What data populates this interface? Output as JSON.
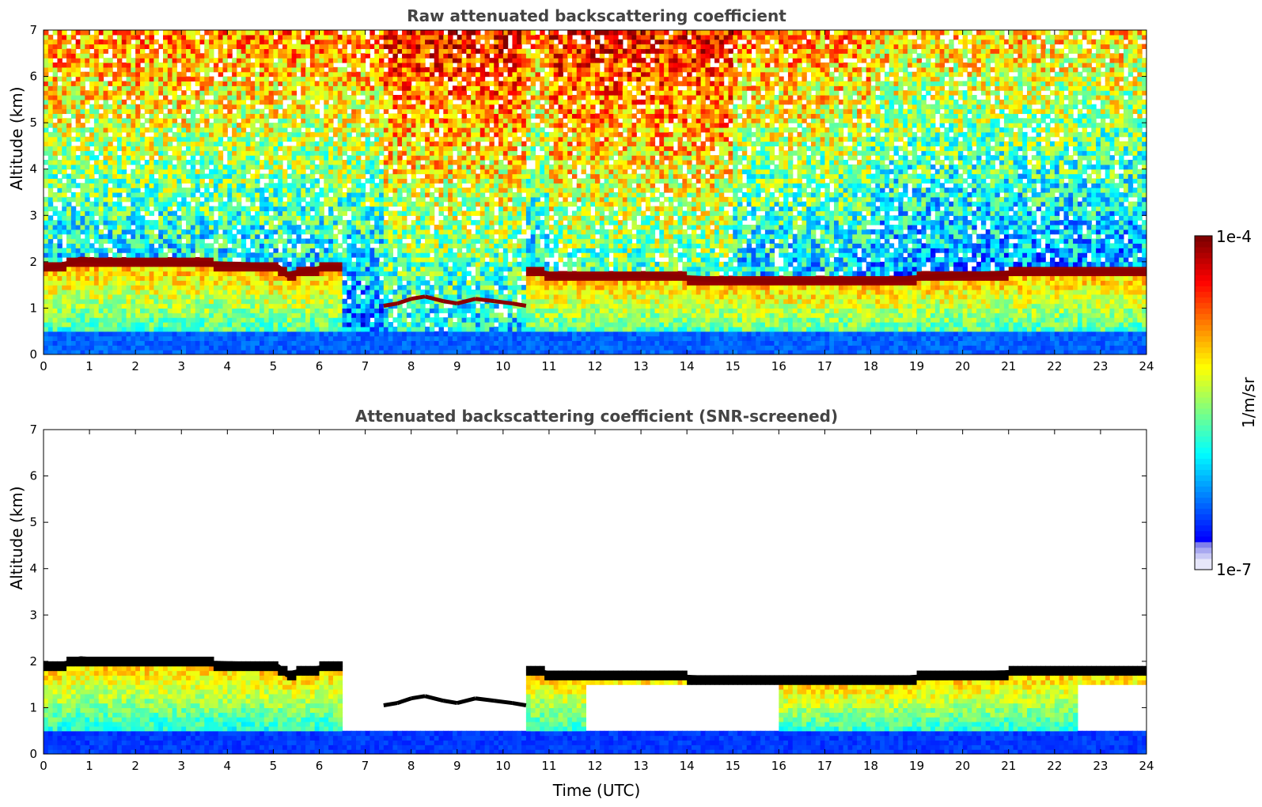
{
  "chart_data": [
    {
      "type": "heatmap",
      "title": "Raw attenuated backscattering coefficient",
      "xlabel": "",
      "ylabel": "Altitude (km)",
      "xlim": [
        0,
        24
      ],
      "ylim": [
        0,
        7
      ],
      "xticks": [
        0,
        1,
        2,
        3,
        4,
        5,
        6,
        7,
        8,
        9,
        10,
        11,
        12,
        13,
        14,
        15,
        16,
        17,
        18,
        19,
        20,
        21,
        22,
        23,
        24
      ],
      "yticks": [
        0,
        1,
        2,
        3,
        4,
        5,
        6,
        7
      ],
      "colormap": "jet",
      "screened": false,
      "cloud_layer": {
        "x": [
          0,
          0.5,
          0.8,
          1.5,
          3,
          4.5,
          5.1,
          5.3,
          5.7,
          6.2,
          6.5,
          10.6,
          11.2,
          12,
          13,
          14,
          15,
          16,
          17,
          18,
          19,
          20,
          21,
          22,
          23,
          24
        ],
        "y": [
          1.85,
          1.95,
          2.05,
          2.0,
          1.97,
          1.93,
          1.88,
          1.72,
          1.8,
          1.88,
          1.85,
          1.82,
          1.68,
          1.68,
          1.72,
          1.65,
          1.6,
          1.57,
          1.6,
          1.58,
          1.65,
          1.72,
          1.75,
          1.78,
          1.8,
          1.78
        ]
      },
      "low_cloud": {
        "x": [
          7.4,
          7.7,
          8.0,
          8.3,
          8.7,
          9.0,
          9.4,
          9.8,
          10.2,
          10.5
        ],
        "y": [
          1.05,
          1.1,
          1.2,
          1.25,
          1.15,
          1.1,
          1.2,
          1.15,
          1.1,
          1.05
        ]
      }
    },
    {
      "type": "heatmap",
      "title": "Attenuated backscattering coefficient (SNR-screened)",
      "xlabel": "Time (UTC)",
      "ylabel": "Altitude (km)",
      "xlim": [
        0,
        24
      ],
      "ylim": [
        0,
        7
      ],
      "xticks": [
        0,
        1,
        2,
        3,
        4,
        5,
        6,
        7,
        8,
        9,
        10,
        11,
        12,
        13,
        14,
        15,
        16,
        17,
        18,
        19,
        20,
        21,
        22,
        23,
        24
      ],
      "yticks": [
        0,
        1,
        2,
        3,
        4,
        5,
        6,
        7
      ],
      "colormap": "jet",
      "screened": true,
      "cloud_layer": {
        "x": [
          0,
          0.5,
          0.8,
          1.5,
          3,
          4.5,
          5.1,
          5.3,
          5.7,
          6.2,
          6.5,
          10.6,
          11.2,
          12,
          13,
          14,
          15,
          16,
          17,
          18,
          19,
          20,
          21,
          22,
          23,
          24
        ],
        "y": [
          1.85,
          1.95,
          2.05,
          2.0,
          1.97,
          1.93,
          1.88,
          1.72,
          1.8,
          1.88,
          1.85,
          1.82,
          1.68,
          1.68,
          1.72,
          1.65,
          1.6,
          1.57,
          1.6,
          1.58,
          1.65,
          1.72,
          1.75,
          1.78,
          1.8,
          1.78
        ]
      },
      "low_cloud": {
        "x": [
          7.4,
          7.7,
          8.0,
          8.3,
          8.7,
          9.0,
          9.4,
          9.8,
          10.2,
          10.5
        ],
        "y": [
          1.05,
          1.1,
          1.2,
          1.25,
          1.15,
          1.1,
          1.2,
          1.15,
          1.1,
          1.05
        ]
      }
    }
  ],
  "colorbar": {
    "label": "1/m/sr",
    "max_label": "1e-4",
    "min_label": "1e-7",
    "colors": [
      "#e6e6fa",
      "#c8c8f5",
      "#a8a8f0",
      "#8080ec",
      "#0000ff",
      "#0040ff",
      "#0080ff",
      "#00c0ff",
      "#00e0e0",
      "#40ffb0",
      "#80ff80",
      "#c0ff40",
      "#ffff00",
      "#ffc000",
      "#ff8000",
      "#ff4000",
      "#e00000",
      "#a00000",
      "#800000"
    ]
  }
}
